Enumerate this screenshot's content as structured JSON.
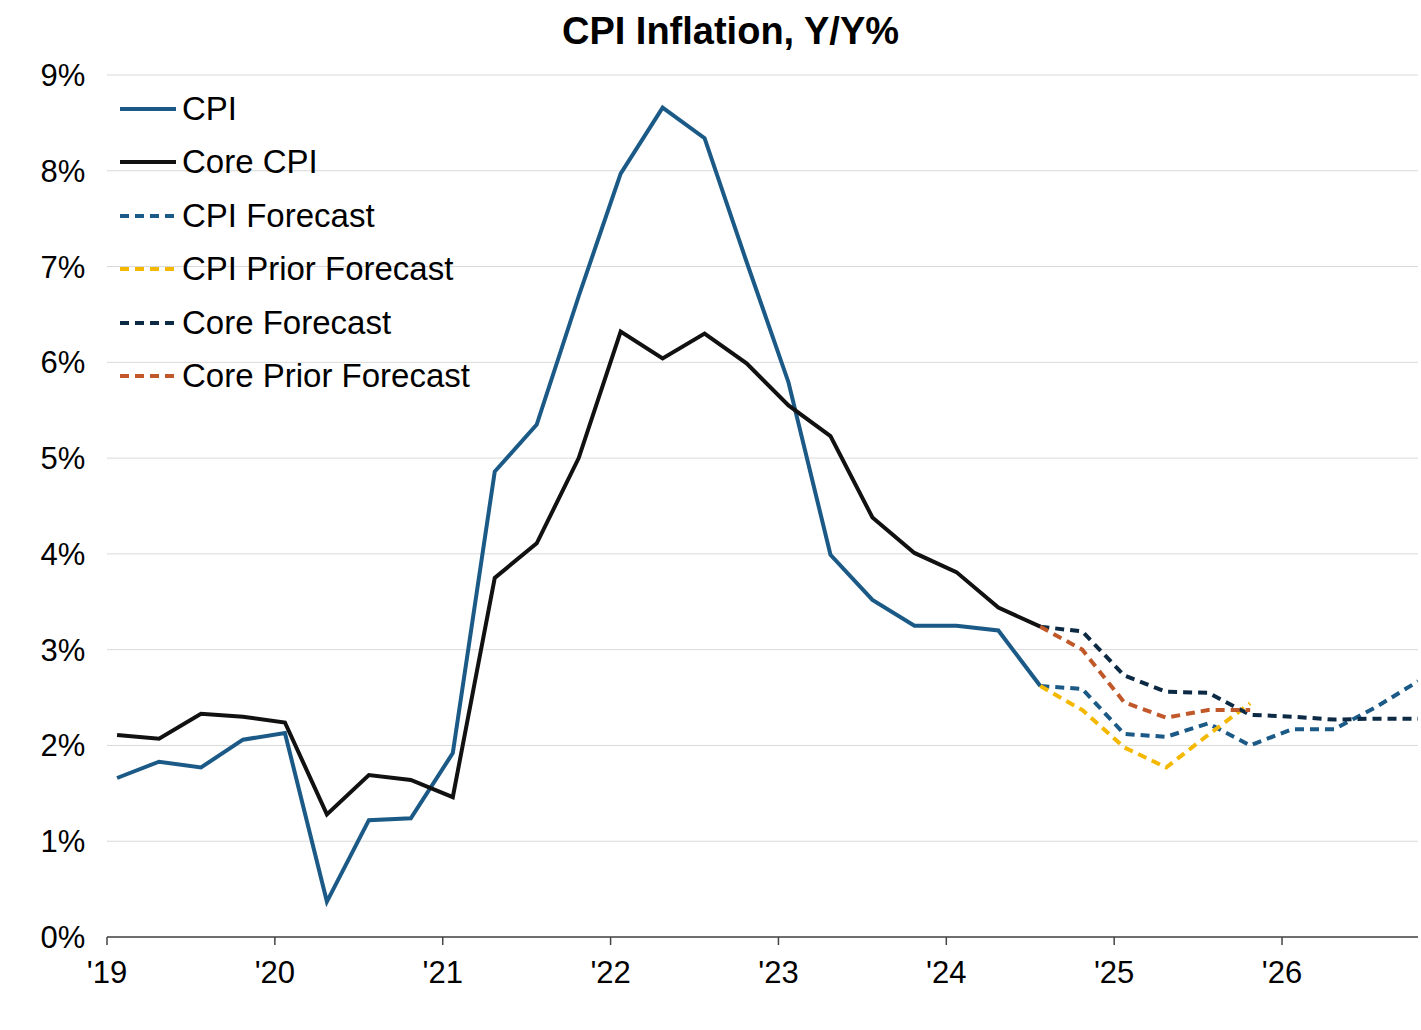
{
  "chart_data": {
    "type": "line",
    "title": "CPI Inflation, Y/Y%",
    "x": [
      2019.06,
      2019.31,
      2019.56,
      2019.81,
      2020.06,
      2020.31,
      2020.56,
      2020.81,
      2021.06,
      2021.31,
      2021.56,
      2021.81,
      2022.06,
      2022.31,
      2022.56,
      2022.81,
      2023.06,
      2023.31,
      2023.56,
      2023.81,
      2024.06,
      2024.31,
      2024.56,
      2024.81,
      2025.06,
      2025.31,
      2025.56,
      2025.81,
      2026.06,
      2026.31,
      2026.56,
      2026.81
    ],
    "series": [
      {
        "name": "CPI",
        "color": "#1b5a86",
        "line_style": "solid",
        "values": [
          1.66,
          1.83,
          1.77,
          2.06,
          2.13,
          0.37,
          1.22,
          1.24,
          1.92,
          4.86,
          5.35,
          6.69,
          7.97,
          8.66,
          8.34,
          7.05,
          5.79,
          3.99,
          3.52,
          3.25,
          3.25,
          3.2,
          2.62,
          null,
          null,
          null,
          null,
          null,
          null,
          null,
          null,
          null
        ]
      },
      {
        "name": "Core CPI",
        "color": "#111111",
        "line_style": "solid",
        "values": [
          2.11,
          2.07,
          2.33,
          2.3,
          2.24,
          1.28,
          1.69,
          1.64,
          1.46,
          3.75,
          4.11,
          5.0,
          6.32,
          6.04,
          6.3,
          5.99,
          5.55,
          5.23,
          4.38,
          4.01,
          3.81,
          3.44,
          3.24,
          null,
          null,
          null,
          null,
          null,
          null,
          null,
          null,
          null
        ]
      },
      {
        "name": "CPI Forecast",
        "color": "#1b5a86",
        "line_style": "dashed",
        "values": [
          null,
          null,
          null,
          null,
          null,
          null,
          null,
          null,
          null,
          null,
          null,
          null,
          null,
          null,
          null,
          null,
          null,
          null,
          null,
          null,
          null,
          null,
          2.62,
          2.59,
          2.12,
          2.09,
          2.23,
          2.0,
          2.17,
          2.17,
          2.4,
          2.67
        ]
      },
      {
        "name": "CPI Prior Forecast",
        "color": "#f5b800",
        "line_style": "dashed",
        "values": [
          null,
          null,
          null,
          null,
          null,
          null,
          null,
          null,
          null,
          null,
          null,
          null,
          null,
          null,
          null,
          null,
          null,
          null,
          null,
          null,
          null,
          null,
          2.62,
          2.37,
          1.98,
          1.77,
          2.11,
          2.44,
          null,
          null,
          null,
          null
        ]
      },
      {
        "name": "Core Forecast",
        "color": "#0d2a45",
        "line_style": "dashed",
        "values": [
          null,
          null,
          null,
          null,
          null,
          null,
          null,
          null,
          null,
          null,
          null,
          null,
          null,
          null,
          null,
          null,
          null,
          null,
          null,
          null,
          null,
          null,
          3.24,
          3.19,
          2.73,
          2.56,
          2.55,
          2.32,
          2.3,
          2.27,
          2.28,
          2.28
        ]
      },
      {
        "name": "Core Prior Forecast",
        "color": "#c0582a",
        "line_style": "dashed",
        "values": [
          null,
          null,
          null,
          null,
          null,
          null,
          null,
          null,
          null,
          null,
          null,
          null,
          null,
          null,
          null,
          null,
          null,
          null,
          null,
          null,
          null,
          null,
          3.24,
          3.0,
          2.45,
          2.29,
          2.37,
          2.37,
          null,
          null,
          null,
          null
        ]
      }
    ],
    "xlim": [
      2019,
      2026.81
    ],
    "xticks": [
      {
        "value": 2019,
        "label": "'19"
      },
      {
        "value": 2020,
        "label": "'20"
      },
      {
        "value": 2021,
        "label": "'21"
      },
      {
        "value": 2022,
        "label": "'22"
      },
      {
        "value": 2023,
        "label": "'23"
      },
      {
        "value": 2024,
        "label": "'24"
      },
      {
        "value": 2025,
        "label": "'25"
      },
      {
        "value": 2026,
        "label": "'26"
      }
    ],
    "ylim": [
      0,
      9
    ],
    "yticks": [
      {
        "value": 0,
        "label": "0%"
      },
      {
        "value": 1,
        "label": "1%"
      },
      {
        "value": 2,
        "label": "2%"
      },
      {
        "value": 3,
        "label": "3%"
      },
      {
        "value": 4,
        "label": "4%"
      },
      {
        "value": 5,
        "label": "5%"
      },
      {
        "value": 6,
        "label": "6%"
      },
      {
        "value": 7,
        "label": "7%"
      },
      {
        "value": 8,
        "label": "8%"
      },
      {
        "value": 9,
        "label": "9%"
      }
    ],
    "grid": true,
    "legend": "upper left"
  }
}
